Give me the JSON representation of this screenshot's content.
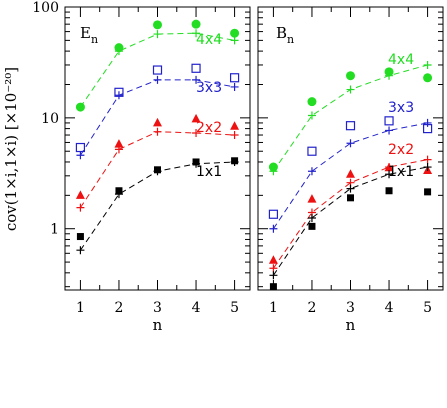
{
  "chart_data": [
    {
      "type": "scatter",
      "panel_label": "E",
      "panel_subscript": "n",
      "x": [
        1,
        2,
        3,
        4,
        5
      ],
      "ylim": [
        0.28,
        100
      ],
      "yscale": "log",
      "xlabel": "n",
      "ylabel": "cov(1×i,1×i) [×10⁻²⁰]",
      "x_tick_labels": [
        "1",
        "2",
        "3",
        "4",
        "5"
      ],
      "y_tick_labels": [
        "1",
        "10",
        "100"
      ],
      "series": [
        {
          "name": "4x4",
          "color": "#22dd22",
          "marker": "circle",
          "points": [
            12.5,
            43,
            69,
            70,
            58
          ],
          "fit": [
            12.5,
            40,
            57,
            58,
            50
          ]
        },
        {
          "name": "3x3",
          "color": "#2222cc",
          "marker": "square-open",
          "points": [
            5.4,
            17,
            27,
            28,
            23
          ],
          "fit": [
            4.6,
            16,
            22,
            22,
            19
          ]
        },
        {
          "name": "2x2",
          "color": "#ee1111",
          "marker": "triangle",
          "points": [
            2.0,
            5.8,
            9.0,
            9.8,
            8.4
          ],
          "fit": [
            1.55,
            5.2,
            7.5,
            7.3,
            7.0
          ]
        },
        {
          "name": "1x1",
          "color": "#000000",
          "marker": "square",
          "points": [
            0.85,
            2.2,
            3.4,
            4.0,
            4.1
          ],
          "fit": [
            0.64,
            2.05,
            3.3,
            3.85,
            4.0
          ]
        }
      ]
    },
    {
      "type": "scatter",
      "panel_label": "B",
      "panel_subscript": "n",
      "x": [
        1,
        2,
        3,
        4,
        5
      ],
      "ylim": [
        0.28,
        100
      ],
      "yscale": "log",
      "xlabel": "n",
      "x_tick_labels": [
        "1",
        "2",
        "3",
        "4",
        "5"
      ],
      "series": [
        {
          "name": "4x4",
          "color": "#22dd22",
          "marker": "circle",
          "points": [
            3.6,
            14,
            24,
            26,
            23
          ],
          "fit": [
            3.3,
            10.5,
            18,
            24,
            30
          ]
        },
        {
          "name": "3x3",
          "color": "#2222cc",
          "marker": "square-open",
          "points": [
            1.35,
            5.0,
            8.5,
            9.4,
            8.0
          ],
          "fit": [
            1.0,
            3.3,
            5.9,
            7.7,
            9.0
          ]
        },
        {
          "name": "2x2",
          "color": "#ee1111",
          "marker": "triangle",
          "points": [
            0.52,
            1.85,
            3.1,
            3.55,
            3.35
          ],
          "fit": [
            0.44,
            1.4,
            2.6,
            3.6,
            4.2
          ]
        },
        {
          "name": "1x1",
          "color": "#000000",
          "marker": "square",
          "points": [
            0.3,
            1.05,
            1.9,
            2.2,
            2.15
          ],
          "fit": [
            0.38,
            1.25,
            2.3,
            3.1,
            3.6
          ]
        }
      ]
    }
  ]
}
